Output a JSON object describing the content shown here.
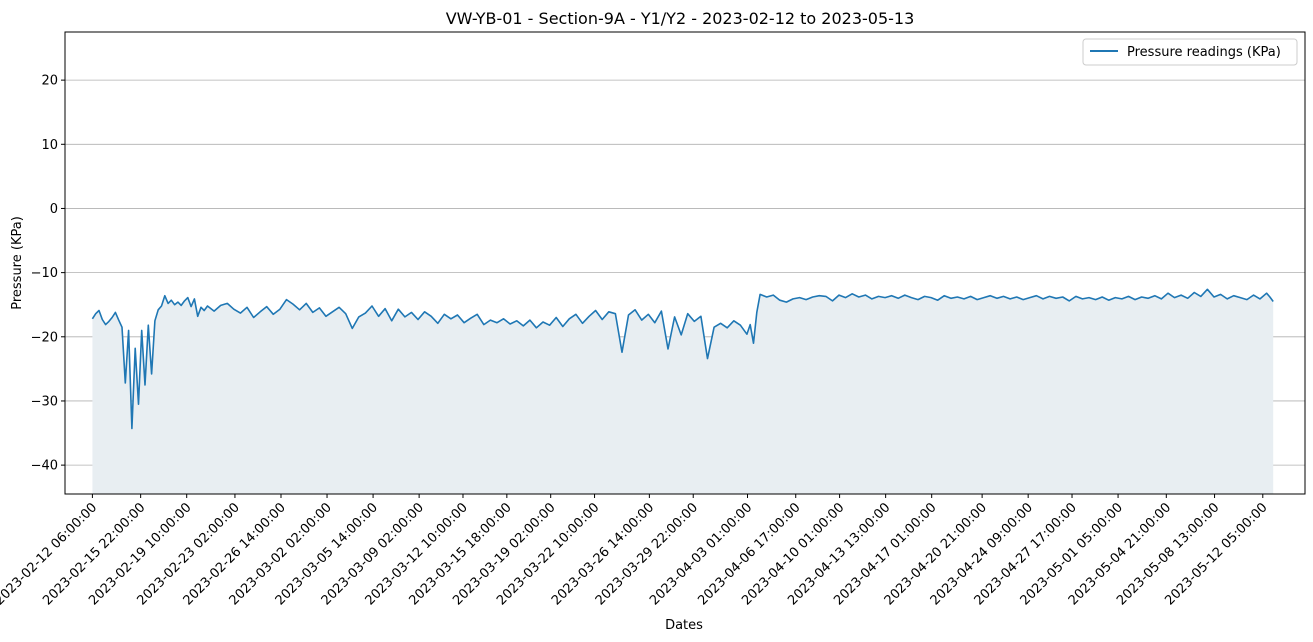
{
  "chart_data": {
    "type": "area",
    "title": "VW-YB-01 - Section-9A - Y1/Y2 - 2023-02-12 to 2023-05-13",
    "xlabel": "Dates",
    "ylabel": "Pressure (KPa)",
    "ylim": [
      -44.5,
      27.5
    ],
    "yticks": [
      20,
      10,
      0,
      -10,
      -20,
      -30,
      -40
    ],
    "xlim": [
      "2023-02-10T04:00",
      "2023-05-15T10:00"
    ],
    "xticks": [
      "2023-02-12 06:00:00",
      "2023-02-15 22:00:00",
      "2023-02-19 10:00:00",
      "2023-02-23 02:00:00",
      "2023-02-26 14:00:00",
      "2023-03-02 02:00:00",
      "2023-03-05 14:00:00",
      "2023-03-09 02:00:00",
      "2023-03-12 10:00:00",
      "2023-03-15 18:00:00",
      "2023-03-19 02:00:00",
      "2023-03-22 10:00:00",
      "2023-03-26 14:00:00",
      "2023-03-29 22:00:00",
      "2023-04-03 01:00:00",
      "2023-04-06 17:00:00",
      "2023-04-10 01:00:00",
      "2023-04-13 13:00:00",
      "2023-04-17 01:00:00",
      "2023-04-20 21:00:00",
      "2023-04-24 09:00:00",
      "2023-04-27 17:00:00",
      "2023-05-01 05:00:00",
      "2023-05-04 21:00:00",
      "2023-05-08 13:00:00",
      "2023-05-12 05:00:00"
    ],
    "grid": "horizontal",
    "legend_position": "top-right",
    "fill_to": -44.5,
    "series": [
      {
        "name": "Pressure readings (KPa)",
        "color": "#1f77b4",
        "fill_color": "#e8eef2",
        "points": [
          [
            "2023-02-12T06:00",
            -17.2
          ],
          [
            "2023-02-12T12:00",
            -16.4
          ],
          [
            "2023-02-12T18:00",
            -15.9
          ],
          [
            "2023-02-13T00:00",
            -17.3
          ],
          [
            "2023-02-13T06:00",
            -18.1
          ],
          [
            "2023-02-13T12:00",
            -17.6
          ],
          [
            "2023-02-13T18:00",
            -17.0
          ],
          [
            "2023-02-14T00:00",
            -16.2
          ],
          [
            "2023-02-14T06:00",
            -17.4
          ],
          [
            "2023-02-14T12:00",
            -18.5
          ],
          [
            "2023-02-14T18:00",
            -27.2
          ],
          [
            "2023-02-15T00:00",
            -19.0
          ],
          [
            "2023-02-15T06:00",
            -34.3
          ],
          [
            "2023-02-15T12:00",
            -21.8
          ],
          [
            "2023-02-15T18:00",
            -30.5
          ],
          [
            "2023-02-16T00:00",
            -19.0
          ],
          [
            "2023-02-16T06:00",
            -27.5
          ],
          [
            "2023-02-16T12:00",
            -18.2
          ],
          [
            "2023-02-16T18:00",
            -25.8
          ],
          [
            "2023-02-17T00:00",
            -17.5
          ],
          [
            "2023-02-17T06:00",
            -15.8
          ],
          [
            "2023-02-17T12:00",
            -15.2
          ],
          [
            "2023-02-17T18:00",
            -13.6
          ],
          [
            "2023-02-18T00:00",
            -14.8
          ],
          [
            "2023-02-18T06:00",
            -14.3
          ],
          [
            "2023-02-18T12:00",
            -15.0
          ],
          [
            "2023-02-18T18:00",
            -14.6
          ],
          [
            "2023-02-19T00:00",
            -15.1
          ],
          [
            "2023-02-19T06:00",
            -14.4
          ],
          [
            "2023-02-19T12:00",
            -13.9
          ],
          [
            "2023-02-19T18:00",
            -15.3
          ],
          [
            "2023-02-20T00:00",
            -14.1
          ],
          [
            "2023-02-20T06:00",
            -16.8
          ],
          [
            "2023-02-20T12:00",
            -15.4
          ],
          [
            "2023-02-20T18:00",
            -15.9
          ],
          [
            "2023-02-21T00:00",
            -15.2
          ],
          [
            "2023-02-21T12:00",
            -16.0
          ],
          [
            "2023-02-22T00:00",
            -15.1
          ],
          [
            "2023-02-22T12:00",
            -14.8
          ],
          [
            "2023-02-23T00:00",
            -15.7
          ],
          [
            "2023-02-23T12:00",
            -16.3
          ],
          [
            "2023-02-24T00:00",
            -15.4
          ],
          [
            "2023-02-24T12:00",
            -17.0
          ],
          [
            "2023-02-25T00:00",
            -16.1
          ],
          [
            "2023-02-25T12:00",
            -15.3
          ],
          [
            "2023-02-26T00:00",
            -16.5
          ],
          [
            "2023-02-26T12:00",
            -15.7
          ],
          [
            "2023-02-27T00:00",
            -14.2
          ],
          [
            "2023-02-27T12:00",
            -14.9
          ],
          [
            "2023-02-28T00:00",
            -15.8
          ],
          [
            "2023-02-28T12:00",
            -14.8
          ],
          [
            "2023-03-01T00:00",
            -16.2
          ],
          [
            "2023-03-01T12:00",
            -15.5
          ],
          [
            "2023-03-02T00:00",
            -16.8
          ],
          [
            "2023-03-02T12:00",
            -16.1
          ],
          [
            "2023-03-03T00:00",
            -15.4
          ],
          [
            "2023-03-03T12:00",
            -16.4
          ],
          [
            "2023-03-04T00:00",
            -18.7
          ],
          [
            "2023-03-04T12:00",
            -16.9
          ],
          [
            "2023-03-05T00:00",
            -16.3
          ],
          [
            "2023-03-05T12:00",
            -15.2
          ],
          [
            "2023-03-06T00:00",
            -16.8
          ],
          [
            "2023-03-06T12:00",
            -15.6
          ],
          [
            "2023-03-07T00:00",
            -17.5
          ],
          [
            "2023-03-07T12:00",
            -15.7
          ],
          [
            "2023-03-08T00:00",
            -16.9
          ],
          [
            "2023-03-08T12:00",
            -16.2
          ],
          [
            "2023-03-09T00:00",
            -17.3
          ],
          [
            "2023-03-09T12:00",
            -16.1
          ],
          [
            "2023-03-10T00:00",
            -16.8
          ],
          [
            "2023-03-10T12:00",
            -17.9
          ],
          [
            "2023-03-11T00:00",
            -16.5
          ],
          [
            "2023-03-11T12:00",
            -17.2
          ],
          [
            "2023-03-12T00:00",
            -16.6
          ],
          [
            "2023-03-12T12:00",
            -17.8
          ],
          [
            "2023-03-13T00:00",
            -17.1
          ],
          [
            "2023-03-13T12:00",
            -16.5
          ],
          [
            "2023-03-14T00:00",
            -18.1
          ],
          [
            "2023-03-14T12:00",
            -17.4
          ],
          [
            "2023-03-15T00:00",
            -17.8
          ],
          [
            "2023-03-15T12:00",
            -17.2
          ],
          [
            "2023-03-16T00:00",
            -18.0
          ],
          [
            "2023-03-16T12:00",
            -17.5
          ],
          [
            "2023-03-17T00:00",
            -18.3
          ],
          [
            "2023-03-17T12:00",
            -17.4
          ],
          [
            "2023-03-18T00:00",
            -18.6
          ],
          [
            "2023-03-18T12:00",
            -17.7
          ],
          [
            "2023-03-19T00:00",
            -18.2
          ],
          [
            "2023-03-19T12:00",
            -17.0
          ],
          [
            "2023-03-20T00:00",
            -18.4
          ],
          [
            "2023-03-20T12:00",
            -17.2
          ],
          [
            "2023-03-21T00:00",
            -16.5
          ],
          [
            "2023-03-21T12:00",
            -17.9
          ],
          [
            "2023-03-22T00:00",
            -16.8
          ],
          [
            "2023-03-22T12:00",
            -15.9
          ],
          [
            "2023-03-23T00:00",
            -17.3
          ],
          [
            "2023-03-23T12:00",
            -16.1
          ],
          [
            "2023-03-24T00:00",
            -16.4
          ],
          [
            "2023-03-24T12:00",
            -22.4
          ],
          [
            "2023-03-25T00:00",
            -16.6
          ],
          [
            "2023-03-25T12:00",
            -15.8
          ],
          [
            "2023-03-26T00:00",
            -17.4
          ],
          [
            "2023-03-26T12:00",
            -16.5
          ],
          [
            "2023-03-27T00:00",
            -17.8
          ],
          [
            "2023-03-27T12:00",
            -16.0
          ],
          [
            "2023-03-28T00:00",
            -21.9
          ],
          [
            "2023-03-28T12:00",
            -16.9
          ],
          [
            "2023-03-29T00:00",
            -19.7
          ],
          [
            "2023-03-29T12:00",
            -16.4
          ],
          [
            "2023-03-30T00:00",
            -17.6
          ],
          [
            "2023-03-30T12:00",
            -16.8
          ],
          [
            "2023-03-31T00:00",
            -23.4
          ],
          [
            "2023-03-31T12:00",
            -18.5
          ],
          [
            "2023-04-01T00:00",
            -17.9
          ],
          [
            "2023-04-01T12:00",
            -18.6
          ],
          [
            "2023-04-02T00:00",
            -17.5
          ],
          [
            "2023-04-02T12:00",
            -18.2
          ],
          [
            "2023-04-03T00:00",
            -19.6
          ],
          [
            "2023-04-03T06:00",
            -18.1
          ],
          [
            "2023-04-03T12:00",
            -21.0
          ],
          [
            "2023-04-03T18:00",
            -16.2
          ],
          [
            "2023-04-04T00:00",
            -13.4
          ],
          [
            "2023-04-04T12:00",
            -13.8
          ],
          [
            "2023-04-05T00:00",
            -13.5
          ],
          [
            "2023-04-05T12:00",
            -14.3
          ],
          [
            "2023-04-06T00:00",
            -14.6
          ],
          [
            "2023-04-06T12:00",
            -14.1
          ],
          [
            "2023-04-07T00:00",
            -13.9
          ],
          [
            "2023-04-07T12:00",
            -14.2
          ],
          [
            "2023-04-08T00:00",
            -13.8
          ],
          [
            "2023-04-08T12:00",
            -13.6
          ],
          [
            "2023-04-09T00:00",
            -13.7
          ],
          [
            "2023-04-09T12:00",
            -14.4
          ],
          [
            "2023-04-10T00:00",
            -13.5
          ],
          [
            "2023-04-10T12:00",
            -13.9
          ],
          [
            "2023-04-11T00:00",
            -13.3
          ],
          [
            "2023-04-11T12:00",
            -13.8
          ],
          [
            "2023-04-12T00:00",
            -13.5
          ],
          [
            "2023-04-12T12:00",
            -14.1
          ],
          [
            "2023-04-13T00:00",
            -13.7
          ],
          [
            "2023-04-13T12:00",
            -13.9
          ],
          [
            "2023-04-14T00:00",
            -13.6
          ],
          [
            "2023-04-14T12:00",
            -14.0
          ],
          [
            "2023-04-15T00:00",
            -13.5
          ],
          [
            "2023-04-15T12:00",
            -13.9
          ],
          [
            "2023-04-16T00:00",
            -14.2
          ],
          [
            "2023-04-16T12:00",
            -13.7
          ],
          [
            "2023-04-17T00:00",
            -13.9
          ],
          [
            "2023-04-17T12:00",
            -14.3
          ],
          [
            "2023-04-18T00:00",
            -13.6
          ],
          [
            "2023-04-18T12:00",
            -14.0
          ],
          [
            "2023-04-19T00:00",
            -13.8
          ],
          [
            "2023-04-19T12:00",
            -14.1
          ],
          [
            "2023-04-20T00:00",
            -13.7
          ],
          [
            "2023-04-20T12:00",
            -14.2
          ],
          [
            "2023-04-21T00:00",
            -13.9
          ],
          [
            "2023-04-21T12:00",
            -13.6
          ],
          [
            "2023-04-22T00:00",
            -14.0
          ],
          [
            "2023-04-22T12:00",
            -13.7
          ],
          [
            "2023-04-23T00:00",
            -14.1
          ],
          [
            "2023-04-23T12:00",
            -13.8
          ],
          [
            "2023-04-24T00:00",
            -14.2
          ],
          [
            "2023-04-24T12:00",
            -13.9
          ],
          [
            "2023-04-25T00:00",
            -13.6
          ],
          [
            "2023-04-25T12:00",
            -14.1
          ],
          [
            "2023-04-26T00:00",
            -13.7
          ],
          [
            "2023-04-26T12:00",
            -14.0
          ],
          [
            "2023-04-27T00:00",
            -13.8
          ],
          [
            "2023-04-27T12:00",
            -14.4
          ],
          [
            "2023-04-28T00:00",
            -13.7
          ],
          [
            "2023-04-28T12:00",
            -14.1
          ],
          [
            "2023-04-29T00:00",
            -13.9
          ],
          [
            "2023-04-29T12:00",
            -14.2
          ],
          [
            "2023-04-30T00:00",
            -13.8
          ],
          [
            "2023-04-30T12:00",
            -14.3
          ],
          [
            "2023-05-01T00:00",
            -13.9
          ],
          [
            "2023-05-01T12:00",
            -14.1
          ],
          [
            "2023-05-02T00:00",
            -13.7
          ],
          [
            "2023-05-02T12:00",
            -14.2
          ],
          [
            "2023-05-03T00:00",
            -13.8
          ],
          [
            "2023-05-03T12:00",
            -14.0
          ],
          [
            "2023-05-04T00:00",
            -13.6
          ],
          [
            "2023-05-04T12:00",
            -14.1
          ],
          [
            "2023-05-05T00:00",
            -13.2
          ],
          [
            "2023-05-05T12:00",
            -13.9
          ],
          [
            "2023-05-06T00:00",
            -13.5
          ],
          [
            "2023-05-06T12:00",
            -14.0
          ],
          [
            "2023-05-07T00:00",
            -13.1
          ],
          [
            "2023-05-07T12:00",
            -13.7
          ],
          [
            "2023-05-08T00:00",
            -12.6
          ],
          [
            "2023-05-08T12:00",
            -13.8
          ],
          [
            "2023-05-09T00:00",
            -13.4
          ],
          [
            "2023-05-09T12:00",
            -14.1
          ],
          [
            "2023-05-10T00:00",
            -13.6
          ],
          [
            "2023-05-10T12:00",
            -13.9
          ],
          [
            "2023-05-11T00:00",
            -14.2
          ],
          [
            "2023-05-11T12:00",
            -13.5
          ],
          [
            "2023-05-12T00:00",
            -14.1
          ],
          [
            "2023-05-12T12:00",
            -13.2
          ],
          [
            "2023-05-12T18:00",
            -13.8
          ],
          [
            "2023-05-13T00:00",
            -14.5
          ]
        ]
      }
    ]
  }
}
